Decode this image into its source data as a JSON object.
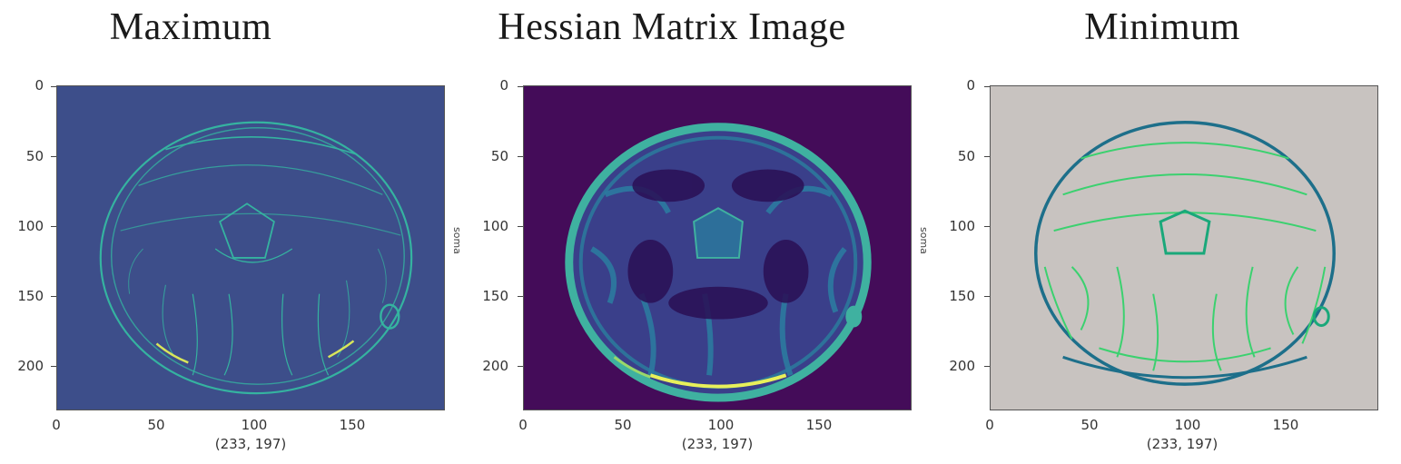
{
  "panels": [
    {
      "title": "Maximum",
      "shape_label": "(233, 197)",
      "background": "#3b4f8c",
      "edge_color": "#35b3a0",
      "highlight_color": "#d8e65a"
    },
    {
      "title": "Hessian Matrix  Image",
      "shape_label": "(233, 197)",
      "side_note": "soma",
      "background": "#440c59",
      "edge_color": "#3ca8a0",
      "highlight_color": "#e8f05a"
    },
    {
      "title": "Minimum",
      "shape_label": "(233, 197)",
      "side_note": "soma",
      "background": "#c7c2bf",
      "edge_color": "#1aa87a",
      "highlight_color": "#3bd16f"
    }
  ],
  "axes": {
    "y_ticks": [
      "0",
      "50",
      "100",
      "150",
      "200"
    ],
    "x_ticks": [
      "0",
      "50",
      "100",
      "150"
    ],
    "x_range": [
      0,
      197
    ],
    "y_range": [
      0,
      233
    ]
  }
}
